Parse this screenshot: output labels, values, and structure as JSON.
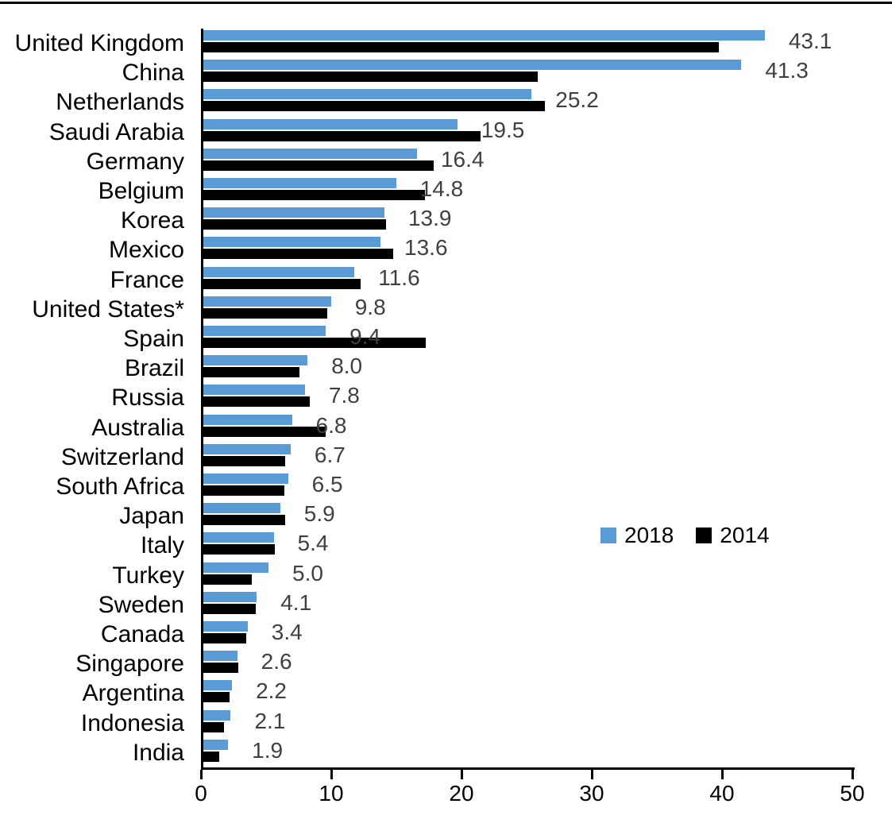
{
  "chart_data": {
    "type": "bar",
    "orientation": "horizontal",
    "categories": [
      "United Kingdom",
      "China",
      "Netherlands",
      "Saudi Arabia",
      "Germany",
      "Belgium",
      "Korea",
      "Mexico",
      "France",
      "United States*",
      "Spain",
      "Brazil",
      "Russia",
      "Australia",
      "Switzerland",
      "South Africa",
      "Japan",
      "Italy",
      "Turkey",
      "Sweden",
      "Canada",
      "Singapore",
      "Argentina",
      "Indonesia",
      "India"
    ],
    "series": [
      {
        "name": "2018",
        "color": "#5B9BD5",
        "values": [
          43.1,
          41.3,
          25.2,
          19.5,
          16.4,
          14.8,
          13.9,
          13.6,
          11.6,
          9.8,
          9.4,
          8.0,
          7.8,
          6.8,
          6.7,
          6.5,
          5.9,
          5.4,
          5.0,
          4.1,
          3.4,
          2.6,
          2.2,
          2.1,
          1.9
        ],
        "data_labels": [
          "43.1",
          "41.3",
          "25.2",
          "19.5",
          "16.4",
          "14.8",
          "13.9",
          "13.6",
          "11.6",
          "9.8",
          "9.4",
          "8.0",
          "7.8",
          "6.8",
          "6.7",
          "6.5",
          "5.9",
          "5.4",
          "5.0",
          "4.1",
          "3.4",
          "2.6",
          "2.2",
          "2.1",
          "1.9"
        ]
      },
      {
        "name": "2014",
        "color": "#000000",
        "values": [
          39.6,
          25.7,
          26.2,
          21.3,
          17.7,
          17.0,
          14.0,
          14.6,
          12.1,
          9.5,
          17.1,
          7.4,
          8.2,
          9.4,
          6.3,
          6.2,
          6.3,
          5.5,
          3.7,
          4.0,
          3.3,
          2.7,
          2.0,
          1.6,
          1.2
        ]
      }
    ],
    "xlim": [
      0,
      50
    ],
    "x_ticks": [
      "0",
      "10",
      "20",
      "30",
      "40",
      "50"
    ],
    "legend": {
      "entries": [
        "2018",
        "2014"
      ],
      "position": "inside-middle-right"
    },
    "grid": false,
    "value_label_color": "#404040",
    "axis_color": "#000000"
  }
}
